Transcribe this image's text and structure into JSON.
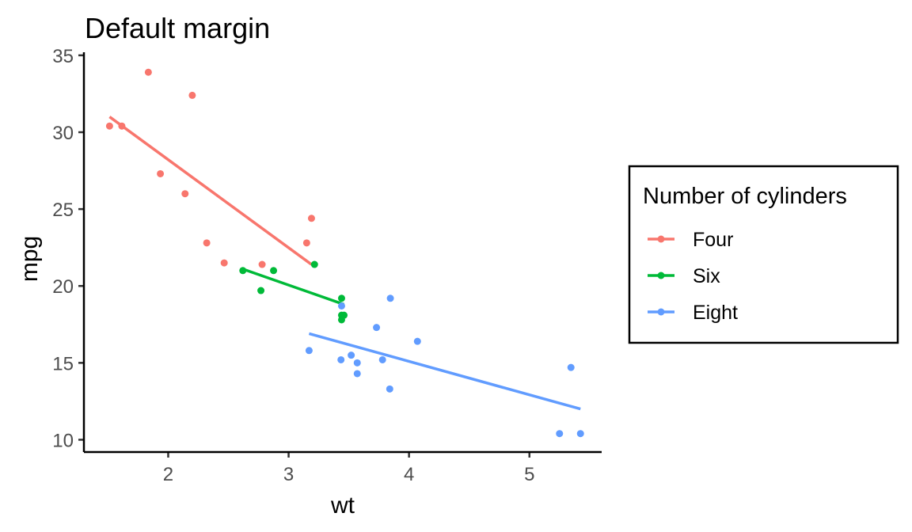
{
  "chart_data": {
    "type": "scatter",
    "title": "Default margin",
    "xlabel": "wt",
    "ylabel": "mpg",
    "xlim": [
      1.3,
      5.6
    ],
    "ylim": [
      9.2,
      35.2
    ],
    "xticks": [
      2,
      3,
      4,
      5
    ],
    "yticks": [
      10,
      15,
      20,
      25,
      30,
      35
    ],
    "grid": false,
    "legend": {
      "title": "Number of cylinders",
      "placement": "right"
    },
    "series": [
      {
        "name": "Four",
        "color": "#F8766D",
        "points": [
          [
            1.513,
            30.4
          ],
          [
            1.615,
            30.4
          ],
          [
            1.835,
            33.9
          ],
          [
            1.935,
            27.3
          ],
          [
            2.14,
            26.0
          ],
          [
            2.2,
            32.4
          ],
          [
            2.32,
            22.8
          ],
          [
            2.465,
            21.5
          ],
          [
            2.78,
            21.4
          ],
          [
            3.15,
            22.8
          ],
          [
            3.19,
            24.4
          ]
        ],
        "fit": {
          "x": [
            1.513,
            3.19
          ],
          "y": [
            31.0,
            21.4
          ]
        }
      },
      {
        "name": "Six",
        "color": "#00BA38",
        "points": [
          [
            2.62,
            21.0
          ],
          [
            2.77,
            19.7
          ],
          [
            2.875,
            21.0
          ],
          [
            3.215,
            21.4
          ],
          [
            3.44,
            18.1
          ],
          [
            3.44,
            19.2
          ],
          [
            3.46,
            18.1
          ],
          [
            3.44,
            17.8
          ]
        ],
        "fit": {
          "x": [
            2.62,
            3.46
          ],
          "y": [
            21.1,
            18.8
          ]
        }
      },
      {
        "name": "Eight",
        "color": "#619CFF",
        "points": [
          [
            3.17,
            15.8
          ],
          [
            3.435,
            15.2
          ],
          [
            3.44,
            18.7
          ],
          [
            3.52,
            15.5
          ],
          [
            3.57,
            14.3
          ],
          [
            3.57,
            15.0
          ],
          [
            3.73,
            17.3
          ],
          [
            3.78,
            15.2
          ],
          [
            3.84,
            13.3
          ],
          [
            3.845,
            19.2
          ],
          [
            4.07,
            16.4
          ],
          [
            5.25,
            10.4
          ],
          [
            5.345,
            14.7
          ],
          [
            5.424,
            10.4
          ]
        ],
        "fit": {
          "x": [
            3.17,
            5.424
          ],
          "y": [
            16.9,
            12.0
          ]
        }
      }
    ]
  }
}
